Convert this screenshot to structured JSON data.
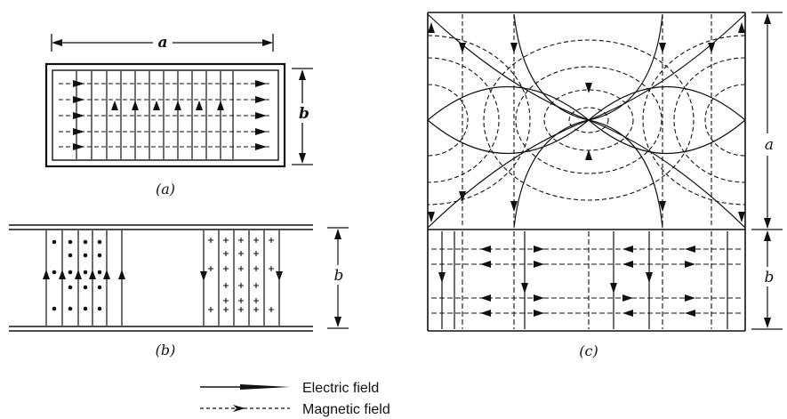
{
  "diagram": {
    "panel_a": {
      "caption": "(a)",
      "dim_width_label": "a",
      "dim_height_label": "b"
    },
    "panel_b": {
      "caption": "(b)",
      "dim_height_label": "b"
    },
    "panel_c": {
      "caption": "(c)",
      "dim_upper_label": "a",
      "dim_lower_label": "b"
    },
    "legend": {
      "electric": "Electric field",
      "magnetic": "Magnetic field"
    }
  }
}
